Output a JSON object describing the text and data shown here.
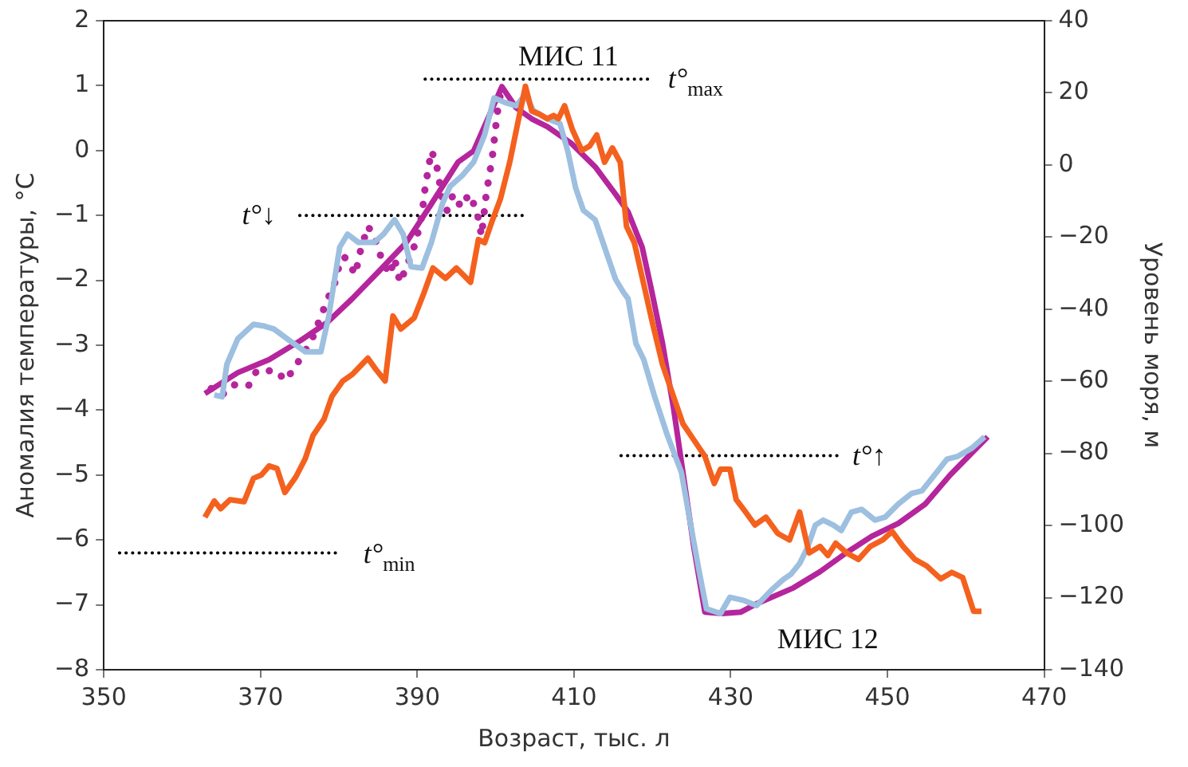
{
  "chart_data": {
    "type": "line",
    "xlabel": "Возраст, тыс. л",
    "ylabel": "Аномалия температуры, °C",
    "y2label": "Уровень моря, м",
    "xlim": [
      350,
      470
    ],
    "xticks": [
      350,
      370,
      390,
      410,
      430,
      450,
      470
    ],
    "ylim": [
      -8,
      2
    ],
    "yticks": [
      {
        "value": -8,
        "label": "−8"
      },
      {
        "value": -7,
        "label": "−7"
      },
      {
        "value": -6,
        "label": "−6"
      },
      {
        "value": -5,
        "label": "−5"
      },
      {
        "value": -4,
        "label": "−4"
      },
      {
        "value": -3,
        "label": "−3"
      },
      {
        "value": -2,
        "label": "−2"
      },
      {
        "value": -1,
        "label": "−1"
      },
      0,
      1,
      2
    ],
    "y2lim": [
      -140,
      40
    ],
    "y2ticks": [
      {
        "value": -140,
        "label": "−140"
      },
      {
        "value": -120,
        "label": "−120"
      },
      {
        "value": -100,
        "label": "−100"
      },
      {
        "value": -80,
        "label": "−80"
      },
      {
        "value": -60,
        "label": "−60"
      },
      {
        "value": -40,
        "label": "−40"
      },
      {
        "value": -20,
        "label": "−20"
      },
      0,
      20,
      40
    ],
    "grid": false,
    "legend": false,
    "marker": "none",
    "series": [
      {
        "color": "#f4611e",
        "line_style": "solid",
        "x": [
          362.9,
          364.1,
          364.9,
          366.1,
          367.9,
          369.1,
          370.1,
          371.1,
          372.1,
          373.1,
          374.5,
          375.7,
          376.7,
          378.1,
          379.1,
          380.5,
          381.7,
          382.5,
          383.7,
          384.7,
          385.9,
          386.9,
          387.9,
          389.6,
          390.8,
          392.0,
          393.6,
          395.0,
          396.8,
          397.8,
          398.6,
          399.6,
          400.6,
          401.8,
          402.8,
          403.8,
          404.6,
          405.6,
          406.6,
          407.4,
          408.0,
          408.8,
          409.8,
          411.0,
          412.0,
          412.9,
          413.9,
          414.9,
          415.9,
          416.7,
          417.7,
          418.9,
          420.0,
          421.3,
          422.7,
          423.9,
          425.3,
          426.7,
          427.9,
          428.7,
          429.9,
          430.7,
          431.9,
          433.1,
          434.5,
          436.0,
          437.5,
          438.8,
          440.0,
          441.4,
          442.4,
          443.4,
          444.8,
          446.3,
          447.8,
          449.4,
          450.6,
          452.0,
          453.5,
          455.0,
          456.8,
          458.2,
          459.6,
          461.0,
          462.0
        ],
        "values": [
          -5.65,
          -5.4,
          -5.52,
          -5.38,
          -5.41,
          -5.05,
          -5.0,
          -4.86,
          -4.9,
          -5.27,
          -5.03,
          -4.75,
          -4.39,
          -4.14,
          -3.79,
          -3.55,
          -3.45,
          -3.35,
          -3.2,
          -3.37,
          -3.55,
          -2.55,
          -2.75,
          -2.58,
          -2.21,
          -1.81,
          -1.97,
          -1.81,
          -2.03,
          -1.37,
          -1.42,
          -1.07,
          -0.75,
          -0.18,
          0.41,
          0.99,
          0.61,
          0.56,
          0.49,
          0.54,
          0.49,
          0.69,
          0.32,
          0.0,
          0.07,
          0.24,
          -0.18,
          0.04,
          -0.18,
          -1.17,
          -1.42,
          -2.06,
          -2.65,
          -3.3,
          -3.79,
          -4.21,
          -4.46,
          -4.71,
          -5.13,
          -4.91,
          -4.91,
          -5.38,
          -5.57,
          -5.77,
          -5.65,
          -5.9,
          -6.0,
          -5.57,
          -6.2,
          -6.1,
          -6.24,
          -6.05,
          -6.2,
          -6.3,
          -6.1,
          -6.0,
          -5.87,
          -6.1,
          -6.3,
          -6.4,
          -6.6,
          -6.5,
          -6.58,
          -7.1,
          -7.1
        ]
      },
      {
        "color": "#9dbfe0",
        "line_style": "solid",
        "axis": "y2",
        "x": [
          364.1,
          365.1,
          365.7,
          367.1,
          369.1,
          370.5,
          371.7,
          373.7,
          375.7,
          377.7,
          378.7,
          380.1,
          381.1,
          382.5,
          384.5,
          385.7,
          387.1,
          388.2,
          389.2,
          390.6,
          391.8,
          393.2,
          394.2,
          395.8,
          397.2,
          398.6,
          399.8,
          401.2,
          402.6,
          403.8,
          404.8,
          406.6,
          408.2,
          409.2,
          410.2,
          411.2,
          412.7,
          413.9,
          415.3,
          416.3,
          416.9,
          417.9,
          418.9,
          420.3,
          421.9,
          423.7,
          424.9,
          425.9,
          426.9,
          428.7,
          429.9,
          431.7,
          433.3,
          435.3,
          436.7,
          437.7,
          438.8,
          439.8,
          440.8,
          441.8,
          443.1,
          444.1,
          445.4,
          446.7,
          448.4,
          449.7,
          451.4,
          453.1,
          454.4,
          456.0,
          457.6,
          459.0,
          460.8,
          462.4
        ],
        "values": [
          -63.8,
          -64.3,
          -55.3,
          -48.2,
          -44.2,
          -44.7,
          -45.5,
          -48.7,
          -51.8,
          -51.8,
          -42.0,
          -22.8,
          -19.2,
          -21.5,
          -21.5,
          -19.2,
          -15.2,
          -19.2,
          -28.2,
          -28.6,
          -21.5,
          -10.8,
          -5.9,
          -2.8,
          0.8,
          8.4,
          18.6,
          17.3,
          16.4,
          19.5,
          15.1,
          12.8,
          11.5,
          3.9,
          -6.3,
          -12.6,
          -15.2,
          -22.8,
          -31.7,
          -35.3,
          -37.1,
          -49.5,
          -54.0,
          -64.3,
          -74.9,
          -85.2,
          -99.9,
          -111.9,
          -123.1,
          -124.4,
          -119.9,
          -120.8,
          -122.2,
          -117.7,
          -115.0,
          -113.5,
          -110.5,
          -106.1,
          -99.9,
          -98.5,
          -99.9,
          -101.4,
          -96.3,
          -95.5,
          -98.5,
          -97.7,
          -94.0,
          -91.1,
          -90.4,
          -86.0,
          -81.6,
          -80.8,
          -78.5,
          -75.4
        ]
      },
      {
        "color": "#b5259c",
        "line_style": "dotted",
        "axis": "y2",
        "x": [
          363.7,
          365.1,
          366.4,
          367.5,
          368.5,
          369.5,
          372.1,
          373.1,
          374.1,
          375.1,
          376.5,
          377.7,
          378.5,
          379.5,
          380.1,
          380.7,
          381.3,
          382.1,
          382.7,
          383.7,
          384.5,
          385.5,
          386.5,
          387.1,
          387.8,
          388.8,
          389.8,
          390.6,
          391.0,
          391.8,
          392.4,
          393.2,
          393.8,
          394.6,
          395.6,
          396.6,
          397.6,
          398.2,
          398.8,
          399.6,
          400.2,
          400.6
        ],
        "values": [
          -62,
          -63.8,
          -61.1,
          -60.7,
          -61.1,
          -57.1,
          -57.1,
          -59.8,
          -57.1,
          -53.6,
          -48.7,
          -42,
          -37.5,
          -32.6,
          -27.3,
          -25.5,
          -27.3,
          -30.4,
          -24.2,
          -17,
          -19.7,
          -26.4,
          -30.4,
          -25.9,
          -32.6,
          -27.3,
          -21.5,
          -13.9,
          -6.3,
          3.9,
          0.8,
          -9.4,
          -12.6,
          -8.1,
          -11.7,
          -8.1,
          -12.6,
          -19.7,
          -8.1,
          2.6,
          14.2,
          19.5
        ]
      },
      {
        "color": "#b5259c",
        "line_style": "solid",
        "axis": "y2",
        "x": [
          362.9,
          367.1,
          371.1,
          375.1,
          378.5,
          381.7,
          385.1,
          388.6,
          391.8,
          395.2,
          397.2,
          400.8,
          402.6,
          404.6,
          406.6,
          409.6,
          412.7,
          415.3,
          416.9,
          418.7,
          419.9,
          421.3,
          422.7,
          423.9,
          425.3,
          426.7,
          428.9,
          431.3,
          433.3,
          438.0,
          441.4,
          444.8,
          448.0,
          451.4,
          454.8,
          458.0,
          460.8,
          462.8
        ],
        "values": [
          -63.4,
          -57.6,
          -54,
          -48.7,
          -43.7,
          -37.1,
          -29.5,
          -21.5,
          -10.8,
          0.8,
          3.9,
          21.7,
          15.9,
          12.8,
          10.6,
          6.1,
          -0.5,
          -8.1,
          -13.0,
          -22.8,
          -34.8,
          -49.5,
          -67.4,
          -85.2,
          -106.1,
          -124.0,
          -124.4,
          -124.0,
          -121.7,
          -117.3,
          -112.8,
          -107.5,
          -103.0,
          -99.4,
          -94.1,
          -86.0,
          -79.8,
          -75.4
        ]
      },
      {
        "color": "#000000",
        "line_style": "dotted",
        "x": [
          391,
          420
        ],
        "values": [
          1.1,
          1.1
        ]
      },
      {
        "color": "#000000",
        "line_style": "dotted",
        "x": [
          375,
          404
        ],
        "values": [
          -1.0,
          -1.0
        ]
      },
      {
        "color": "#000000",
        "line_style": "dotted",
        "x": [
          416,
          444
        ],
        "values": [
          -4.7,
          -4.7
        ]
      },
      {
        "color": "#000000",
        "line_style": "dotted",
        "x": [
          352,
          380
        ],
        "values": [
          -6.2,
          -6.2
        ]
      }
    ],
    "annotations": [
      "МИС 11",
      "t°$_{max}$",
      "t°↓",
      "t°↑",
      "t°$_{min}$",
      "МИС 12"
    ]
  }
}
